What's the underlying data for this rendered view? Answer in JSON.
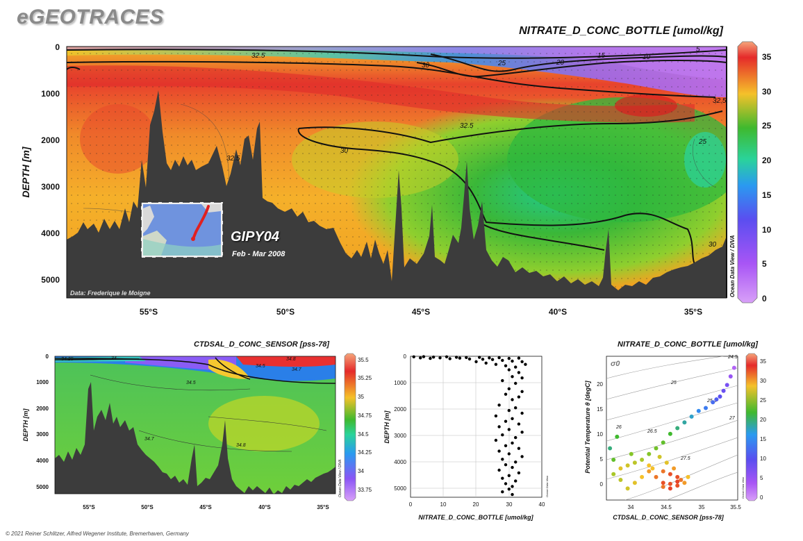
{
  "brand": "eGEOTRACES",
  "footer": "© 2021 Reiner Schlitzer, Alfred Wegener Institute, Bremerhaven, Germany",
  "colors": {
    "bathymetry": "#3c3c3c",
    "scale_low": "#c87cf5",
    "scale_high": "#f28a6a"
  },
  "main_section": {
    "title": "NITRATE_D_CONC_BOTTLE [umol/kg]",
    "ylabel": "DEPTH [m]",
    "yticks": [
      "0",
      "1000",
      "2000",
      "3000",
      "4000",
      "5000"
    ],
    "xticks": [
      "55°S",
      "50°S",
      "45°S",
      "40°S",
      "35°S"
    ],
    "colorbar_ticks": [
      "35",
      "30",
      "25",
      "20",
      "15",
      "10",
      "5",
      "0"
    ],
    "contour_labels": [
      "32.5",
      "30",
      "25",
      "20",
      "15",
      "10",
      "5",
      "32.5",
      "30",
      "32.5",
      "25",
      "32.5",
      "30"
    ],
    "cruise": "GIPY04",
    "dates": "Feb - Mar 2008",
    "credit": "Data: Frederique le Moigne",
    "odv_label": "Ocean Data View / DIVA",
    "map_icon": "station-track-map-icon"
  },
  "salinity_section": {
    "title": "CTDSAL_D_CONC_SENSOR [pss-78]",
    "ylabel": "DEPTH [m]",
    "yticks": [
      "0",
      "1000",
      "2000",
      "3000",
      "4000",
      "5000"
    ],
    "xticks": [
      "55°S",
      "50°S",
      "45°S",
      "40°S",
      "35°S"
    ],
    "colorbar_ticks": [
      "35.5",
      "35.25",
      "35",
      "34.75",
      "34.5",
      "34.25",
      "34",
      "33.75"
    ],
    "contour_labels": [
      "34.25",
      "34",
      "34.5",
      "34.8",
      "34.7",
      "34.5",
      "34.7",
      "34.8"
    ],
    "odv_label": "Ocean Data View / DIVA"
  },
  "chart_data": [
    {
      "type": "scatter",
      "xlabel": "NITRATE_D_CONC_BOTTLE [umol/kg]",
      "ylabel": "DEPTH [m]",
      "xticks": [
        "0",
        "10",
        "20",
        "30",
        "40"
      ],
      "yticks": [
        "0",
        "1000",
        "2000",
        "3000",
        "4000",
        "5000"
      ],
      "xlim": [
        0,
        40
      ],
      "ylim": [
        5200,
        0
      ],
      "grid": true,
      "odv_label": "Ocean Data View",
      "points": [
        [
          1,
          20
        ],
        [
          4,
          15
        ],
        [
          7,
          30
        ],
        [
          11,
          20
        ],
        [
          14,
          35
        ],
        [
          17,
          45
        ],
        [
          21,
          40
        ],
        [
          24,
          60
        ],
        [
          27,
          55
        ],
        [
          30,
          80
        ],
        [
          33,
          70
        ],
        [
          3,
          60
        ],
        [
          6,
          80
        ],
        [
          9,
          60
        ],
        [
          12,
          90
        ],
        [
          15,
          70
        ],
        [
          18,
          100
        ],
        [
          22,
          110
        ],
        [
          25,
          120
        ],
        [
          28,
          150
        ],
        [
          31,
          180
        ],
        [
          34,
          200
        ],
        [
          20,
          200
        ],
        [
          23,
          250
        ],
        [
          26,
          300
        ],
        [
          29,
          350
        ],
        [
          32,
          400
        ],
        [
          35,
          300
        ],
        [
          30,
          500
        ],
        [
          33,
          600
        ],
        [
          31,
          750
        ],
        [
          34,
          800
        ],
        [
          28,
          900
        ],
        [
          32,
          1000
        ],
        [
          30,
          1200
        ],
        [
          34,
          1300
        ],
        [
          29,
          1400
        ],
        [
          33,
          1500
        ],
        [
          31,
          1600
        ],
        [
          27,
          1800
        ],
        [
          32,
          1900
        ],
        [
          30,
          2000
        ],
        [
          34,
          2100
        ],
        [
          26,
          2200
        ],
        [
          31,
          2300
        ],
        [
          29,
          2400
        ],
        [
          33,
          2500
        ],
        [
          27,
          2600
        ],
        [
          30,
          2700
        ],
        [
          34,
          2800
        ],
        [
          28,
          2900
        ],
        [
          32,
          3000
        ],
        [
          26,
          3100
        ],
        [
          31,
          3200
        ],
        [
          29,
          3300
        ],
        [
          33,
          3400
        ],
        [
          27,
          3500
        ],
        [
          30,
          3600
        ],
        [
          34,
          3700
        ],
        [
          28,
          3800
        ],
        [
          32,
          3900
        ],
        [
          29,
          4000
        ],
        [
          31,
          4100
        ],
        [
          27,
          4200
        ],
        [
          33,
          4300
        ],
        [
          30,
          4400
        ],
        [
          28,
          4500
        ],
        [
          32,
          4600
        ],
        [
          29,
          4700
        ],
        [
          31,
          4800
        ],
        [
          30,
          4900
        ],
        [
          28,
          5000
        ],
        [
          31,
          5100
        ]
      ]
    },
    {
      "type": "scatter",
      "title": "NITRATE_D_CONC_BOTTLE [umol/kg]",
      "xlabel": "CTDSAL_D_CONC_SENSOR [pss-78]",
      "ylabel": "Potential Temperature θ [degC]",
      "xticks": [
        "34",
        "34.5",
        "35",
        "35.5"
      ],
      "yticks": [
        "0",
        "5",
        "10",
        "15",
        "20"
      ],
      "xlim": [
        33.7,
        35.55
      ],
      "ylim": [
        -2,
        23
      ],
      "density_label": "σ0",
      "isopycnal_labels": [
        "24.5",
        "25",
        "25.5",
        "26",
        "26.5",
        "27",
        "27.5"
      ],
      "colorbar_ticks": [
        "35",
        "30",
        "25",
        "20",
        "15",
        "10",
        "5",
        "0"
      ],
      "odv_label": "Ocean Data View",
      "points": [
        [
          35.5,
          21,
          4
        ],
        [
          35.45,
          19.5,
          6
        ],
        [
          35.4,
          18,
          8
        ],
        [
          35.3,
          16,
          10
        ],
        [
          35.2,
          15,
          12
        ],
        [
          35.1,
          14,
          13
        ],
        [
          35.0,
          13.5,
          14
        ],
        [
          34.9,
          12.5,
          16
        ],
        [
          34.8,
          11.5,
          17
        ],
        [
          34.7,
          10.5,
          18
        ],
        [
          34.6,
          9.5,
          20
        ],
        [
          34.5,
          8,
          22
        ],
        [
          34.4,
          7,
          23
        ],
        [
          34.3,
          6,
          24
        ],
        [
          34.2,
          5,
          26
        ],
        [
          34.1,
          4.5,
          27
        ],
        [
          34.0,
          4,
          28
        ],
        [
          33.9,
          3.5,
          29
        ],
        [
          33.8,
          5,
          22
        ],
        [
          33.75,
          7,
          18
        ],
        [
          33.85,
          9,
          20
        ],
        [
          34.05,
          6,
          24
        ],
        [
          34.3,
          4,
          30
        ],
        [
          34.5,
          3,
          32
        ],
        [
          34.6,
          2.5,
          33
        ],
        [
          34.7,
          2,
          33
        ],
        [
          34.75,
          1.5,
          32
        ],
        [
          34.8,
          1,
          31
        ],
        [
          34.7,
          0.5,
          33
        ],
        [
          34.6,
          0,
          34
        ],
        [
          34.5,
          1,
          33
        ],
        [
          34.4,
          2,
          32
        ],
        [
          34.3,
          3,
          31
        ],
        [
          34.2,
          2,
          30
        ],
        [
          34.1,
          1,
          29
        ],
        [
          34.0,
          0,
          28
        ],
        [
          33.9,
          1.5,
          27
        ],
        [
          33.8,
          2.5,
          26
        ],
        [
          34.65,
          3.5,
          31
        ],
        [
          34.55,
          4.5,
          29
        ],
        [
          34.45,
          5.5,
          28
        ],
        [
          34.35,
          3.5,
          30
        ],
        [
          34.85,
          2.0,
          30
        ],
        [
          34.7,
          1.2,
          34
        ],
        [
          34.6,
          0.8,
          33
        ],
        [
          34.5,
          0.3,
          32
        ],
        [
          35.35,
          17,
          9
        ],
        [
          35.25,
          15.5,
          11
        ]
      ]
    }
  ]
}
